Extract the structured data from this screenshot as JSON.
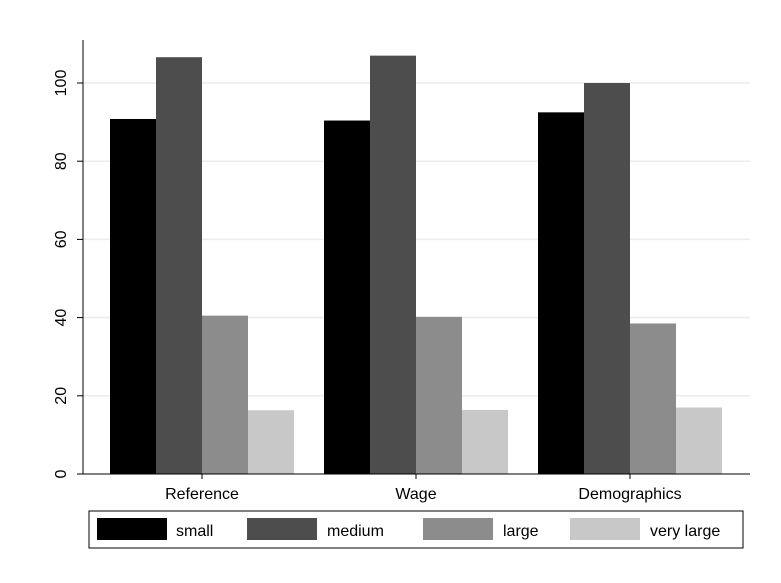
{
  "chart_data": {
    "type": "bar",
    "categories": [
      "Reference",
      "Wage",
      "Demographics"
    ],
    "series": [
      {
        "name": "small",
        "values": [
          90.8,
          90.4,
          92.5
        ],
        "color": "#000000"
      },
      {
        "name": "medium",
        "values": [
          106.6,
          107.0,
          100.0
        ],
        "color": "#4d4d4d"
      },
      {
        "name": "large",
        "values": [
          40.5,
          40.2,
          38.5
        ],
        "color": "#8c8c8c"
      },
      {
        "name": "very large",
        "values": [
          16.3,
          16.4,
          17.0
        ],
        "color": "#c8c8c8"
      }
    ],
    "y_ticks": [
      0,
      20,
      40,
      60,
      80,
      100
    ],
    "ylim": [
      0,
      111
    ],
    "grid": true,
    "legend_position": "bottom"
  }
}
